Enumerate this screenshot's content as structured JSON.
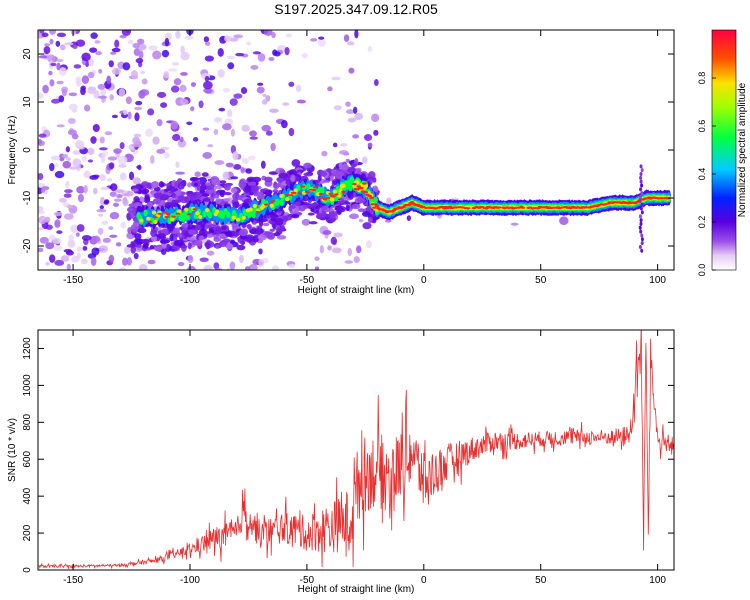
{
  "title": "S197.2025.347.09.12.R05",
  "chart_data": [
    {
      "type": "heatmap",
      "xlabel": "Height of straight line (km)",
      "ylabel": "Frequency (Hz)",
      "xlim": [
        -165,
        107
      ],
      "ylim": [
        -25,
        25
      ],
      "xticks": [
        -150,
        -100,
        -50,
        0,
        50,
        100
      ],
      "yticks": [
        -20,
        -10,
        0,
        10,
        20
      ],
      "ridge": {
        "description": "frequency of the strongest spectral ridge vs height",
        "x": [
          -120,
          -110,
          -100,
          -90,
          -80,
          -70,
          -60,
          -50,
          -40,
          -35,
          -30,
          -25,
          -20,
          -15,
          -10,
          -5,
          0,
          5,
          10,
          20,
          40,
          60,
          70,
          80,
          90,
          95,
          100,
          105
        ],
        "y": [
          -14,
          -14,
          -13,
          -13,
          -14,
          -12,
          -10,
          -8,
          -10,
          -8,
          -7,
          -8,
          -12,
          -13,
          -12,
          -11,
          -12,
          -12,
          -12,
          -12,
          -12,
          -12,
          -12,
          -11,
          -11,
          -10,
          -10,
          -10
        ]
      },
      "colorbar": {
        "label": "Normalized spectral amplitude",
        "range": [
          0,
          1
        ],
        "ticks": [
          "0.0",
          "0.2",
          "0.4",
          "0.6",
          "0.8"
        ]
      }
    },
    {
      "type": "line",
      "xlabel": "Height of straight line (km)",
      "ylabel": "SNR (10 * v/v)",
      "xlim": [
        -165,
        107
      ],
      "ylim": [
        0,
        1300
      ],
      "xticks": [
        -150,
        -100,
        -50,
        0,
        50,
        100
      ],
      "yticks": [
        0,
        200,
        400,
        600,
        800,
        1000,
        1200
      ],
      "series": [
        {
          "name": "SNR",
          "color": "#e83030",
          "x": [
            -165,
            -150,
            -130,
            -115,
            -100,
            -90,
            -80,
            -77,
            -70,
            -60,
            -50,
            -40,
            -35,
            -30,
            -28,
            -20,
            -15,
            -5,
            0,
            10,
            20,
            30,
            40,
            50,
            60,
            70,
            80,
            88,
            91,
            93,
            94,
            95,
            96,
            97,
            100,
            107
          ],
          "y": [
            20,
            20,
            25,
            50,
            110,
            170,
            200,
            320,
            190,
            230,
            200,
            230,
            250,
            300,
            500,
            550,
            500,
            640,
            480,
            580,
            650,
            700,
            700,
            710,
            720,
            720,
            720,
            730,
            980,
            1280,
            120,
            1270,
            200,
            1150,
            700,
            680
          ],
          "noise_amplitude": [
            10,
            10,
            10,
            20,
            40,
            90,
            110,
            110,
            110,
            120,
            140,
            200,
            220,
            260,
            300,
            300,
            280,
            260,
            220,
            150,
            100,
            80,
            70,
            60,
            60,
            60,
            60,
            80,
            200,
            150,
            80,
            150,
            100,
            150,
            80,
            60
          ]
        }
      ]
    }
  ]
}
